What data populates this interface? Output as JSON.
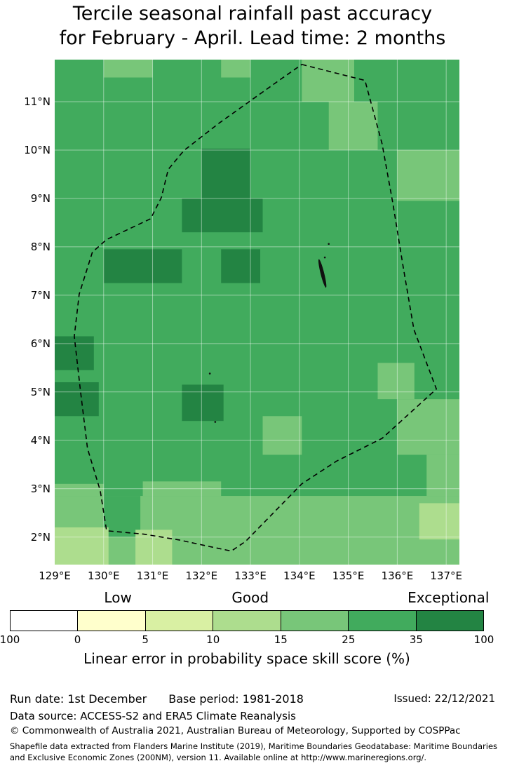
{
  "title": {
    "line1": "Tercile seasonal rainfall past accuracy",
    "line2": "for February - April. Lead time: 2 months"
  },
  "chart_data": {
    "type": "heatmap",
    "title": "Tercile seasonal rainfall past accuracy for February - April. Lead time: 2 months",
    "lon_range": [
      129.0,
      137.27
    ],
    "lat_range": [
      1.43,
      11.87
    ],
    "lon_ticks": [
      {
        "label": "129°E",
        "value": 129
      },
      {
        "label": "130°E",
        "value": 130
      },
      {
        "label": "131°E",
        "value": 131
      },
      {
        "label": "132°E",
        "value": 132
      },
      {
        "label": "133°E",
        "value": 133
      },
      {
        "label": "134°E",
        "value": 134
      },
      {
        "label": "135°E",
        "value": 135
      },
      {
        "label": "136°E",
        "value": 136
      },
      {
        "label": "137°E",
        "value": 137
      }
    ],
    "lat_ticks": [
      {
        "label": "11°N",
        "value": 11
      },
      {
        "label": "10°N",
        "value": 10
      },
      {
        "label": "9°N",
        "value": 9
      },
      {
        "label": "8°N",
        "value": 8
      },
      {
        "label": "7°N",
        "value": 7
      },
      {
        "label": "6°N",
        "value": 6
      },
      {
        "label": "5°N",
        "value": 5
      },
      {
        "label": "4°N",
        "value": 4
      },
      {
        "label": "3°N",
        "value": 3
      },
      {
        "label": "2°N",
        "value": 2
      }
    ],
    "graticule": {
      "lons": [
        130,
        131,
        132,
        133,
        134,
        135,
        136,
        137
      ],
      "lats": [
        2,
        3,
        4,
        5,
        6,
        7,
        8,
        9,
        10,
        11
      ]
    },
    "bins": {
      "lt0": "#ffffff",
      "0-5": "#ffffcc",
      "5-10": "#d9f0a3",
      "10-15": "#addd8e",
      "15-25": "#78c679",
      "25-35": "#41ab5d",
      "gt35": "#238443"
    },
    "base_bin": "25-35",
    "cells": [
      {
        "lon": [
          132.0,
          133.0
        ],
        "lat": [
          9.0,
          10.03
        ],
        "bin": "gt35"
      },
      {
        "lon": [
          131.6,
          133.25
        ],
        "lat": [
          8.3,
          9.0
        ],
        "bin": "gt35"
      },
      {
        "lon": [
          130.0,
          131.6
        ],
        "lat": [
          7.25,
          7.95
        ],
        "bin": "gt35"
      },
      {
        "lon": [
          132.4,
          133.2
        ],
        "lat": [
          7.25,
          7.95
        ],
        "bin": "gt35"
      },
      {
        "lon": [
          129.0,
          129.8
        ],
        "lat": [
          5.45,
          6.15
        ],
        "bin": "gt35"
      },
      {
        "lon": [
          129.0,
          129.9
        ],
        "lat": [
          4.5,
          5.2
        ],
        "bin": "gt35"
      },
      {
        "lon": [
          131.6,
          132.45
        ],
        "lat": [
          4.4,
          5.15
        ],
        "bin": "gt35"
      },
      {
        "lon": [
          130.0,
          131.0
        ],
        "lat": [
          11.5,
          11.87
        ],
        "bin": "15-25"
      },
      {
        "lon": [
          132.4,
          133.0
        ],
        "lat": [
          11.5,
          11.87
        ],
        "bin": "15-25"
      },
      {
        "lon": [
          134.05,
          135.12
        ],
        "lat": [
          11.0,
          11.87
        ],
        "bin": "15-25"
      },
      {
        "lon": [
          134.6,
          135.6
        ],
        "lat": [
          10.0,
          11.0
        ],
        "bin": "15-25"
      },
      {
        "lon": [
          136.0,
          137.27
        ],
        "lat": [
          8.95,
          10.0
        ],
        "bin": "15-25"
      },
      {
        "lon": [
          135.6,
          136.35
        ],
        "lat": [
          4.85,
          5.6
        ],
        "bin": "15-25"
      },
      {
        "lon": [
          136.0,
          137.27
        ],
        "lat": [
          3.7,
          4.85
        ],
        "bin": "15-25"
      },
      {
        "lon": [
          136.6,
          137.27
        ],
        "lat": [
          2.85,
          3.7
        ],
        "bin": "15-25"
      },
      {
        "lon": [
          133.25,
          134.05
        ],
        "lat": [
          3.7,
          4.5
        ],
        "bin": "15-25"
      },
      {
        "lon": [
          129.0,
          137.27
        ],
        "lat": [
          1.43,
          2.85
        ],
        "bin": "15-25"
      },
      {
        "lon": [
          130.8,
          132.4
        ],
        "lat": [
          2.85,
          3.15
        ],
        "bin": "15-25"
      },
      {
        "lon": [
          129.0,
          130.0
        ],
        "lat": [
          2.85,
          3.1
        ],
        "bin": "15-25"
      },
      {
        "lon": [
          130.0,
          130.75
        ],
        "lat": [
          2.0,
          2.85
        ],
        "bin": "25-35"
      },
      {
        "lon": [
          129.0,
          130.1
        ],
        "lat": [
          1.43,
          2.2
        ],
        "bin": "10-15"
      },
      {
        "lon": [
          130.65,
          131.4
        ],
        "lat": [
          1.43,
          2.15
        ],
        "bin": "10-15"
      },
      {
        "lon": [
          136.45,
          137.27
        ],
        "lat": [
          1.95,
          2.7
        ],
        "bin": "10-15"
      }
    ],
    "boundary": {
      "name": "Exclusive Economic Zone boundary (dashed)",
      "points": [
        [
          134.05,
          11.77
        ],
        [
          135.34,
          11.44
        ],
        [
          135.69,
          10.13
        ],
        [
          135.91,
          8.9
        ],
        [
          136.12,
          7.59
        ],
        [
          136.34,
          6.29
        ],
        [
          136.8,
          5.06
        ],
        [
          135.69,
          4.04
        ],
        [
          134.76,
          3.57
        ],
        [
          134.05,
          3.1
        ],
        [
          132.9,
          1.91
        ],
        [
          132.61,
          1.71
        ],
        [
          132.18,
          1.8
        ],
        [
          131.54,
          1.94
        ],
        [
          130.82,
          2.06
        ],
        [
          130.06,
          2.13
        ],
        [
          129.93,
          2.96
        ],
        [
          129.67,
          3.83
        ],
        [
          129.53,
          4.99
        ],
        [
          129.4,
          6.15
        ],
        [
          129.5,
          7.02
        ],
        [
          129.77,
          7.89
        ],
        [
          130.06,
          8.15
        ],
        [
          130.96,
          8.58
        ],
        [
          131.18,
          9.02
        ],
        [
          131.32,
          9.6
        ],
        [
          131.64,
          9.99
        ],
        [
          132.35,
          10.55
        ],
        [
          133.07,
          11.07
        ],
        [
          133.64,
          11.48
        ]
      ]
    },
    "islands": {
      "main_chain": {
        "lon": 134.47,
        "lat": 7.45
      },
      "dots": [
        [
          134.6,
          8.06
        ],
        [
          134.52,
          7.78
        ],
        [
          132.17,
          5.38
        ],
        [
          132.28,
          4.38
        ]
      ]
    },
    "colorbar": {
      "quality_labels": [
        {
          "text": "Low",
          "pos": 0.228
        },
        {
          "text": "Good",
          "pos": 0.507
        },
        {
          "text": "Exceptional",
          "pos": 0.925
        }
      ],
      "segment_colors": [
        "#ffffff",
        "#ffffcc",
        "#d9f0a3",
        "#addd8e",
        "#78c679",
        "#41ab5d",
        "#238443"
      ],
      "boundary_labels": [
        "100",
        "0",
        "5",
        "10",
        "15",
        "25",
        "35",
        "100"
      ],
      "caption": "Linear error in probability space skill score (%)"
    }
  },
  "footer": {
    "run_date_label": "Run date: 1st December",
    "base_period_label": "Base period: 1981-2018",
    "issued_label": "Issued: 22/12/2021",
    "data_source": "Data source: ACCESS-S2 and ERA5 Climate Reanalysis",
    "copyright": "© Commonwealth of Australia 2021, Australian Bureau of Meteorology, Supported by COSPPac",
    "shapefile_note": "Shapefile data extracted from Flanders Marine Institute (2019), Maritime Boundaries Geodatabase: Maritime Boundaries and Exclusive Economic Zones (200NM), version 11. Available online at http://www.marineregions.org/."
  }
}
